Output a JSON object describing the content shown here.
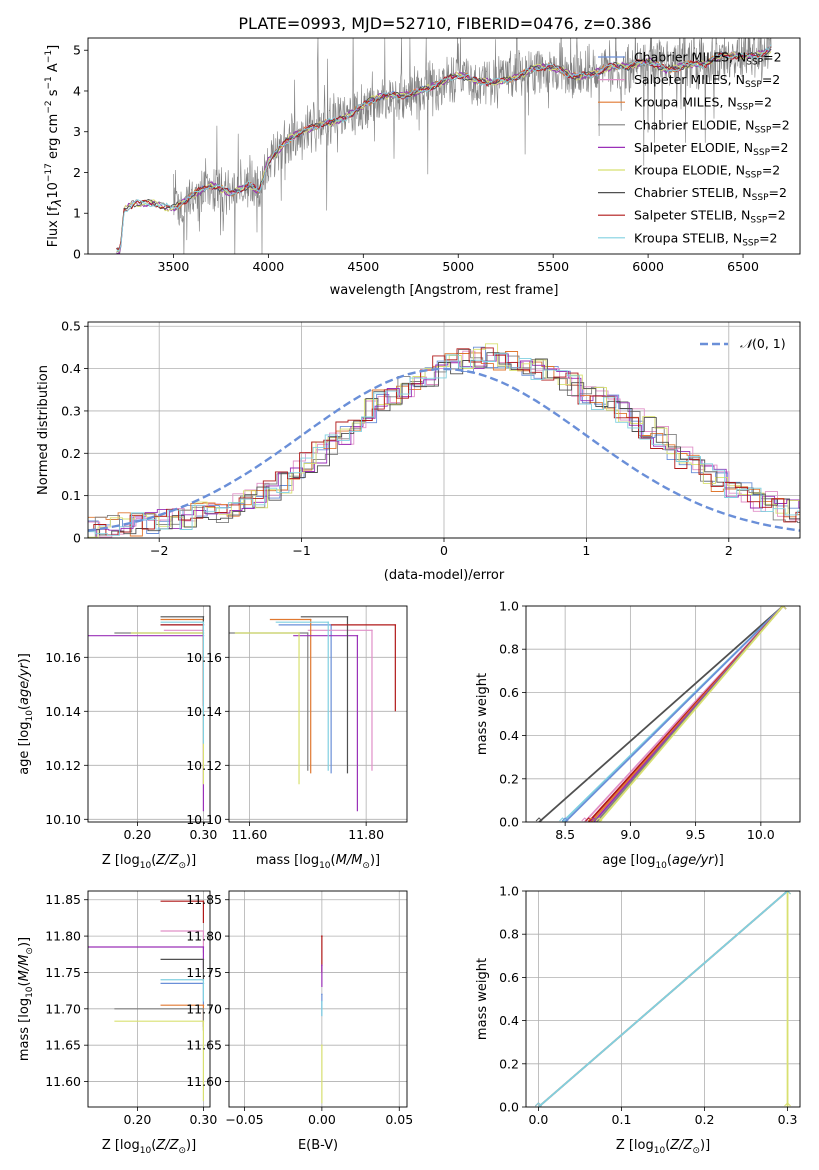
{
  "figure_title": "PLATE=0993, MJD=52710, FIBERID=0476, z=0.386",
  "colors": {
    "Chabrier MILES": "#6a8fd8",
    "Salpeter MILES": "#e090c8",
    "Kroupa MILES": "#e07830",
    "Chabrier ELODIE": "#808080",
    "Salpeter ELODIE": "#9a30b8",
    "Kroupa ELODIE": "#d8e070",
    "Chabrier STELIB": "#505050",
    "Salpeter STELIB": "#b01818",
    "Kroupa STELIB": "#80d0e0",
    "normal_curve": "#6a8fd8",
    "grid": "#b0b0b0"
  },
  "legend_labels": {
    "Chabrier MILES": "Chabrier MILES, N",
    "Salpeter MILES": "Salpeter MILES, N",
    "Kroupa MILES": "Kroupa MILES, N",
    "Chabrier ELODIE": "Chabrier ELODIE, N",
    "Salpeter ELODIE": "Salpeter ELODIE, N",
    "Kroupa ELODIE": "Kroupa ELODIE, N",
    "Chabrier STELIB": "Chabrier STELIB, N",
    "Salpeter STELIB": "Salpeter STELIB, N",
    "Kroupa STELIB": "Kroupa STELIB, N"
  },
  "legend_sub": "SSP",
  "legend_suffix": "=2",
  "normal_label_curly": "𝒩",
  "normal_label_rest": "(0, 1)",
  "chart_data": [
    {
      "id": "spectrum",
      "type": "line",
      "xlabel": "wavelength [Angstrom, rest frame]",
      "ylabel": "Flux [f_λ 10^-17 erg cm^-2 s^-1 A^-1]",
      "ylabel_parts": [
        "Flux [f",
        "λ",
        "10",
        "−17",
        " erg cm",
        "−2",
        " s",
        "−1",
        " A",
        "−1",
        "]"
      ],
      "xlim": [
        3050,
        6800
      ],
      "ylim": [
        0,
        5.3
      ],
      "xticks": [
        3500,
        4000,
        4500,
        5000,
        5500,
        6000,
        6500
      ],
      "yticks": [
        0,
        1,
        2,
        3,
        4,
        5
      ],
      "grid": false,
      "legend": "upper right",
      "continuum": {
        "x": [
          3200,
          3220,
          3240,
          3300,
          3400,
          3500,
          3600,
          3700,
          3800,
          3900,
          3950,
          4000,
          4100,
          4200,
          4300,
          4400,
          4500,
          4600,
          4700,
          4800,
          4900,
          5000,
          5100,
          5200,
          5300,
          5400,
          5500,
          5600,
          5700,
          5800,
          5900,
          6000,
          6100,
          6200,
          6300,
          6400,
          6500,
          6600,
          6650
        ],
        "y": [
          0,
          0,
          1.0,
          1.2,
          1.3,
          1.2,
          1.4,
          1.6,
          1.5,
          1.8,
          1.6,
          2.3,
          2.7,
          3.0,
          3.3,
          3.4,
          3.6,
          3.8,
          3.9,
          4.1,
          4.2,
          4.3,
          4.2,
          4.3,
          4.4,
          4.5,
          4.5,
          4.4,
          4.5,
          4.6,
          4.5,
          4.7,
          4.6,
          4.7,
          4.6,
          4.8,
          4.9,
          5.0,
          5.1
        ]
      },
      "noisy_range": [
        3500,
        6650
      ]
    },
    {
      "id": "residuals",
      "type": "line",
      "xlabel": "(data-model)/error",
      "ylabel": "Normed distribution",
      "xlim": [
        -2.5,
        2.5
      ],
      "ylim": [
        0,
        0.51
      ],
      "xticks": [
        -2,
        -1,
        0,
        1,
        2
      ],
      "yticks": [
        0.0,
        0.1,
        0.2,
        0.3,
        0.4,
        0.5
      ],
      "grid": true,
      "legend": "upper right",
      "bin_width": 0.1,
      "histogram_base": [
        0.02,
        0.02,
        0.025,
        0.03,
        0.03,
        0.035,
        0.04,
        0.045,
        0.05,
        0.055,
        0.06,
        0.065,
        0.075,
        0.085,
        0.1,
        0.115,
        0.13,
        0.155,
        0.18,
        0.2,
        0.225,
        0.25,
        0.275,
        0.3,
        0.32,
        0.34,
        0.355,
        0.37,
        0.385,
        0.4,
        0.41,
        0.42,
        0.43,
        0.43,
        0.425,
        0.42,
        0.41,
        0.4,
        0.39,
        0.375,
        0.36,
        0.345,
        0.33,
        0.315,
        0.3,
        0.28,
        0.26,
        0.24,
        0.215,
        0.19,
        0.17,
        0.15,
        0.135,
        0.12,
        0.105,
        0.09,
        0.08,
        0.07,
        0.06,
        0.05
      ]
    },
    {
      "id": "age_vs_Z",
      "type": "scatter",
      "xlabel": "Z [log10(Z/Z⊙)]",
      "ylabel": "age [log10(age/yr)]",
      "xlim": [
        0.125,
        0.31
      ],
      "ylim": [
        10.099,
        10.179
      ],
      "xticks": [
        0.2,
        0.3
      ],
      "yticks": [
        10.1,
        10.12,
        10.14,
        10.16
      ],
      "grid": true,
      "points": [
        {
          "series": "Chabrier MILES",
          "x": 0.3,
          "y": 10.172,
          "xerr": 0.065,
          "yerr": 0.003
        },
        {
          "series": "Salpeter MILES",
          "x": 0.3,
          "y": 10.17,
          "xerr": 0.06,
          "yerr": 0.004
        },
        {
          "series": "Kroupa MILES",
          "x": 0.3,
          "y": 10.174,
          "xerr": 0.065,
          "yerr": 0.03
        },
        {
          "series": "Chabrier ELODIE",
          "x": 0.3,
          "y": 10.169,
          "xerr": 0.135,
          "yerr": 0.002
        },
        {
          "series": "Salpeter ELODIE",
          "x": 0.3,
          "y": 10.168,
          "xerr": 0.175,
          "yerr": 0.065
        },
        {
          "series": "Kroupa ELODIE",
          "x": 0.3,
          "y": 10.169,
          "xerr": 0.11,
          "yerr": 0.056
        },
        {
          "series": "Chabrier STELIB",
          "x": 0.3,
          "y": 10.175,
          "xerr": 0.065,
          "yerr": 0.002
        },
        {
          "series": "Salpeter STELIB",
          "x": 0.3,
          "y": 10.172,
          "xerr": 0.065,
          "yerr": 0.03
        },
        {
          "series": "Kroupa STELIB",
          "x": 0.3,
          "y": 10.173,
          "xerr": 0.065,
          "yerr": 0.045
        }
      ]
    },
    {
      "id": "age_vs_mass",
      "type": "scatter",
      "xlabel": "mass [log10(M/M⊙)]",
      "ylabel": "",
      "xlim": [
        11.565,
        11.87
      ],
      "ylim": [
        10.099,
        10.179
      ],
      "xticks": [
        11.6,
        11.8
      ],
      "yticks": [
        10.1,
        10.12,
        10.14,
        10.16
      ],
      "grid": true,
      "points": [
        {
          "series": "Chabrier MILES",
          "x": 11.74,
          "y": 10.172,
          "xerr": 0.09,
          "yerr": 0.055
        },
        {
          "series": "Salpeter MILES",
          "x": 11.81,
          "y": 10.17,
          "xerr": 0.11,
          "yerr": 0.052
        },
        {
          "series": "Kroupa MILES",
          "x": 11.705,
          "y": 10.174,
          "xerr": 0.07,
          "yerr": 0.057
        },
        {
          "series": "Chabrier ELODIE",
          "x": 11.7,
          "y": 10.169,
          "xerr": 0.14,
          "yerr": 0.051
        },
        {
          "series": "Salpeter ELODIE",
          "x": 11.785,
          "y": 10.168,
          "xerr": 0.11,
          "yerr": 0.065
        },
        {
          "series": "Kroupa ELODIE",
          "x": 11.685,
          "y": 10.169,
          "xerr": 0.11,
          "yerr": 0.056
        },
        {
          "series": "Chabrier STELIB",
          "x": 11.768,
          "y": 10.175,
          "xerr": 0.08,
          "yerr": 0.058
        },
        {
          "series": "Salpeter STELIB",
          "x": 11.85,
          "y": 10.172,
          "xerr": 0.11,
          "yerr": 0.032
        },
        {
          "series": "Kroupa STELIB",
          "x": 11.735,
          "y": 10.173,
          "xerr": 0.09,
          "yerr": 0.055
        }
      ]
    },
    {
      "id": "cum_age",
      "type": "line",
      "xlabel": "age [log10(age/yr)]",
      "ylabel": "mass weight",
      "xlim": [
        8.2,
        10.3
      ],
      "ylim": [
        0,
        1
      ],
      "xticks": [
        8.5,
        9.0,
        9.5,
        10.0
      ],
      "yticks": [
        0.0,
        0.2,
        0.4,
        0.6,
        0.8,
        1.0
      ],
      "grid": true,
      "lines": [
        {
          "series": "Chabrier STELIB",
          "x0": 8.3,
          "x1": 10.17
        },
        {
          "series": "Kroupa STELIB",
          "x0": 8.48,
          "x1": 10.17
        },
        {
          "series": "Chabrier MILES",
          "x0": 8.5,
          "x1": 10.17
        },
        {
          "series": "Salpeter MILES",
          "x0": 8.65,
          "x1": 10.17
        },
        {
          "series": "Salpeter STELIB",
          "x0": 8.68,
          "x1": 10.17
        },
        {
          "series": "Kroupa MILES",
          "x0": 8.7,
          "x1": 10.17
        },
        {
          "series": "Salpeter ELODIE",
          "x0": 8.72,
          "x1": 10.17
        },
        {
          "series": "Chabrier ELODIE",
          "x0": 8.74,
          "x1": 10.17
        },
        {
          "series": "Kroupa ELODIE",
          "x0": 8.76,
          "x1": 10.17
        }
      ]
    },
    {
      "id": "mass_vs_Z",
      "type": "scatter",
      "xlabel": "Z [log10(Z/Z⊙)]",
      "ylabel": "mass [log10(M/M⊙)]",
      "xlim": [
        0.125,
        0.31
      ],
      "ylim": [
        11.565,
        11.862
      ],
      "xticks": [
        0.2,
        0.3
      ],
      "yticks": [
        11.6,
        11.65,
        11.7,
        11.75,
        11.8,
        11.85
      ],
      "grid": true,
      "points": [
        {
          "series": "Chabrier MILES",
          "x": 0.3,
          "y": 11.735,
          "xerr": 0.065,
          "yerr": 0.03
        },
        {
          "series": "Salpeter MILES",
          "x": 0.3,
          "y": 11.807,
          "xerr": 0.065,
          "yerr": 0.03
        },
        {
          "series": "Kroupa MILES",
          "x": 0.3,
          "y": 11.705,
          "xerr": 0.065,
          "yerr": 0.03
        },
        {
          "series": "Chabrier ELODIE",
          "x": 0.3,
          "y": 11.7,
          "xerr": 0.135,
          "yerr": 0.03
        },
        {
          "series": "Salpeter ELODIE",
          "x": 0.3,
          "y": 11.785,
          "xerr": 0.175,
          "yerr": 0.03
        },
        {
          "series": "Kroupa ELODIE",
          "x": 0.3,
          "y": 11.683,
          "xerr": 0.135,
          "yerr": 0.11
        },
        {
          "series": "Chabrier STELIB",
          "x": 0.3,
          "y": 11.768,
          "xerr": 0.065,
          "yerr": 0.03
        },
        {
          "series": "Salpeter STELIB",
          "x": 0.3,
          "y": 11.848,
          "xerr": 0.065,
          "yerr": 0.03
        },
        {
          "series": "Kroupa STELIB",
          "x": 0.3,
          "y": 11.74,
          "xerr": 0.065,
          "yerr": 0.03
        }
      ]
    },
    {
      "id": "mass_vs_EBV",
      "type": "scatter",
      "xlabel": "E(B-V)",
      "ylabel": "",
      "xlim": [
        -0.06,
        0.055
      ],
      "ylim": [
        11.565,
        11.862
      ],
      "xticks": [
        -0.05,
        0.0,
        0.05
      ],
      "yticks": [
        11.6,
        11.65,
        11.7,
        11.75,
        11.8,
        11.85
      ],
      "grid": true,
      "points": [
        {
          "series": "Salpeter STELIB",
          "x": 0.0,
          "y": 11.8,
          "xerr": 0.0,
          "yerr": 0.05
        },
        {
          "series": "Salpeter ELODIE",
          "x": 0.0,
          "y": 11.76,
          "xerr": 0.0,
          "yerr": 0.03
        },
        {
          "series": "Chabrier MILES",
          "x": 0.0,
          "y": 11.72,
          "xerr": 0.0,
          "yerr": 0.03
        },
        {
          "series": "Kroupa ELODIE",
          "x": 0.0,
          "y": 11.65,
          "xerr": 0.0,
          "yerr": 0.08
        },
        {
          "series": "Kroupa STELIB",
          "x": 0.0,
          "y": 11.71,
          "xerr": 0.0,
          "yerr": 0.02
        }
      ]
    },
    {
      "id": "cum_Z",
      "type": "line",
      "xlabel": "Z [log10(Z/Z⊙)]",
      "ylabel": "mass weight",
      "xlim": [
        -0.015,
        0.315
      ],
      "ylim": [
        0,
        1
      ],
      "xticks": [
        0.0,
        0.1,
        0.2,
        0.3
      ],
      "yticks": [
        0.0,
        0.2,
        0.4,
        0.6,
        0.8,
        1.0
      ],
      "grid": true,
      "lines": [
        {
          "series": "Chabrier MILES",
          "x0": 0.0,
          "x1": 0.3
        },
        {
          "series": "Kroupa MILES",
          "x0": 0.0,
          "x1": 0.3
        },
        {
          "series": "Kroupa ELODIE",
          "x0": 0.3,
          "x1": 0.3
        },
        {
          "series": "Kroupa STELIB",
          "x0": 0.0,
          "x1": 0.3
        }
      ]
    }
  ]
}
